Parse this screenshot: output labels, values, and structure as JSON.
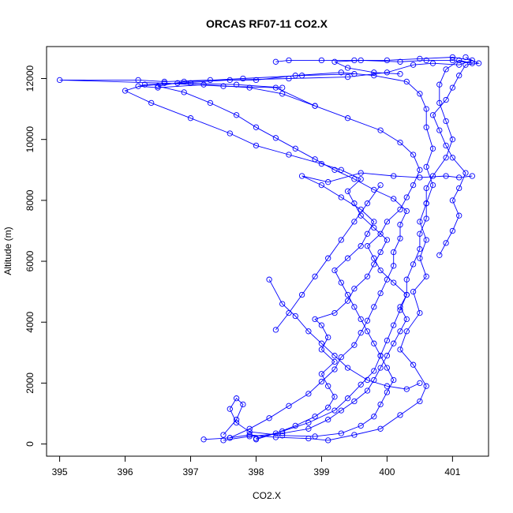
{
  "chart_data": {
    "type": "line",
    "title": "ORCAS RF07-11 CO2.X",
    "xlabel": "CO2.X",
    "ylabel": "Altitude (m)",
    "xlim": [
      394.8,
      401.55
    ],
    "ylim": [
      -400,
      13050
    ],
    "x_ticks": [
      395,
      396,
      397,
      398,
      399,
      400,
      401
    ],
    "y_ticks": [
      0,
      2000,
      4000,
      6000,
      8000,
      10000,
      12000
    ],
    "x_tick_labels": [
      "395",
      "396",
      "397",
      "398",
      "399",
      "400",
      "401"
    ],
    "y_tick_labels": [
      "0",
      "2000",
      "4000",
      "6000",
      "8000",
      "10000",
      "12000"
    ],
    "marker": "open-circle",
    "grid": false,
    "legend": "none",
    "colors": {
      "series": "#0000ff",
      "axis": "#000000"
    },
    "series": [
      {
        "values": [
          [
            397.2,
            150
          ],
          [
            397.6,
            200
          ],
          [
            397.9,
            300
          ],
          [
            398.3,
            220
          ],
          [
            398.8,
            180
          ],
          [
            399.1,
            120
          ],
          [
            399.5,
            300
          ],
          [
            399.9,
            500
          ],
          [
            400.2,
            950
          ],
          [
            400.5,
            1400
          ],
          [
            400.6,
            1900
          ],
          [
            400.4,
            2600
          ],
          [
            400.2,
            3100
          ],
          [
            400.3,
            3700
          ],
          [
            400.5,
            4300
          ],
          [
            400.4,
            5000
          ],
          [
            400.6,
            5500
          ],
          [
            400.5,
            6100
          ],
          [
            400.6,
            6700
          ],
          [
            400.5,
            7300
          ],
          [
            400.6,
            7900
          ],
          [
            400.7,
            8500
          ],
          [
            400.6,
            9100
          ],
          [
            400.7,
            9700
          ],
          [
            400.6,
            10400
          ],
          [
            400.6,
            11000
          ],
          [
            400.5,
            11500
          ],
          [
            400.3,
            11900
          ],
          [
            399.8,
            12100
          ],
          [
            399.3,
            12200
          ],
          [
            398.6,
            12100
          ],
          [
            398.0,
            11950
          ],
          [
            397.3,
            11950
          ],
          [
            396.6,
            11900
          ],
          [
            396.2,
            11950
          ],
          [
            395.0,
            11950
          ],
          [
            396.6,
            11850
          ],
          [
            397.5,
            11750
          ],
          [
            398.3,
            11700
          ],
          [
            398.9,
            11100
          ]
        ]
      },
      {
        "values": [
          [
            398.0,
            180
          ],
          [
            398.4,
            420
          ],
          [
            398.8,
            700
          ],
          [
            399.2,
            1100
          ],
          [
            399.4,
            1500
          ],
          [
            399.6,
            1950
          ],
          [
            399.8,
            2400
          ],
          [
            399.9,
            2900
          ],
          [
            400.0,
            3400
          ],
          [
            400.1,
            3900
          ],
          [
            400.2,
            4400
          ],
          [
            400.3,
            4900
          ],
          [
            400.3,
            5400
          ],
          [
            400.4,
            5900
          ],
          [
            400.5,
            6400
          ],
          [
            400.5,
            6900
          ],
          [
            400.6,
            7400
          ],
          [
            400.6,
            7900
          ],
          [
            400.6,
            8400
          ],
          [
            400.7,
            8800
          ],
          [
            400.9,
            9400
          ],
          [
            401.0,
            10000
          ],
          [
            400.9,
            10600
          ],
          [
            400.8,
            11200
          ],
          [
            400.8,
            11800
          ],
          [
            400.9,
            12300
          ],
          [
            401.1,
            12600
          ],
          [
            401.3,
            12500
          ],
          [
            401.0,
            12600
          ],
          [
            400.6,
            12600
          ],
          [
            400.2,
            12550
          ],
          [
            399.6,
            12600
          ],
          [
            399.2,
            12550
          ],
          [
            399.4,
            12350
          ],
          [
            399.8,
            12200
          ],
          [
            400.2,
            12150
          ]
        ]
      },
      {
        "values": [
          [
            397.6,
            200
          ],
          [
            397.9,
            500
          ],
          [
            398.2,
            850
          ],
          [
            398.5,
            1250
          ],
          [
            398.8,
            1650
          ],
          [
            399.0,
            2050
          ],
          [
            399.2,
            2450
          ],
          [
            399.3,
            2850
          ],
          [
            399.5,
            3250
          ],
          [
            399.6,
            3650
          ],
          [
            399.7,
            4050
          ],
          [
            399.8,
            4500
          ],
          [
            399.9,
            4950
          ],
          [
            400.0,
            5400
          ],
          [
            400.1,
            5850
          ],
          [
            400.1,
            6300
          ],
          [
            400.2,
            6750
          ],
          [
            400.2,
            7200
          ],
          [
            400.3,
            7650
          ],
          [
            400.1,
            8050
          ],
          [
            399.8,
            8350
          ],
          [
            399.5,
            8700
          ],
          [
            399.2,
            9000
          ],
          [
            398.9,
            9350
          ],
          [
            398.6,
            9700
          ],
          [
            398.3,
            10050
          ],
          [
            398.0,
            10400
          ],
          [
            397.7,
            10800
          ],
          [
            397.3,
            11200
          ],
          [
            396.9,
            11550
          ],
          [
            396.5,
            11750
          ],
          [
            396.9,
            11900
          ],
          [
            397.8,
            12000
          ],
          [
            398.7,
            12100
          ],
          [
            399.5,
            12150
          ]
        ]
      },
      {
        "values": [
          [
            398.0,
            150
          ],
          [
            398.3,
            350
          ],
          [
            398.6,
            600
          ],
          [
            398.9,
            900
          ],
          [
            399.1,
            1200
          ],
          [
            399.2,
            1550
          ],
          [
            399.1,
            1900
          ],
          [
            399.0,
            2300
          ],
          [
            399.2,
            2700
          ],
          [
            399.0,
            3100
          ],
          [
            399.1,
            3500
          ],
          [
            399.0,
            3900
          ],
          [
            398.9,
            4100
          ],
          [
            399.2,
            4300
          ],
          [
            399.4,
            4700
          ],
          [
            399.5,
            5100
          ],
          [
            399.7,
            5500
          ],
          [
            399.8,
            5900
          ],
          [
            399.9,
            6300
          ],
          [
            400.0,
            6700
          ],
          [
            399.8,
            7100
          ],
          [
            399.6,
            7500
          ],
          [
            399.5,
            7900
          ],
          [
            399.4,
            8300
          ],
          [
            399.6,
            8700
          ],
          [
            399.3,
            9000
          ],
          [
            399.0,
            9200
          ],
          [
            398.5,
            9500
          ],
          [
            398.0,
            9800
          ],
          [
            397.6,
            10200
          ],
          [
            397.0,
            10700
          ],
          [
            396.4,
            11200
          ],
          [
            396.0,
            11600
          ],
          [
            396.3,
            11800
          ],
          [
            397.0,
            11850
          ],
          [
            397.7,
            11800
          ],
          [
            398.4,
            11700
          ]
        ]
      },
      {
        "values": [
          [
            397.5,
            300
          ],
          [
            397.7,
            800
          ],
          [
            397.8,
            1300
          ],
          [
            397.7,
            1500
          ],
          [
            397.6,
            1150
          ],
          [
            397.7,
            700
          ],
          [
            397.9,
            400
          ],
          [
            398.4,
            280
          ],
          [
            398.9,
            250
          ],
          [
            399.3,
            350
          ],
          [
            399.6,
            600
          ],
          [
            399.8,
            900
          ],
          [
            399.9,
            1300
          ],
          [
            400.0,
            1700
          ],
          [
            400.1,
            2100
          ],
          [
            400.0,
            2500
          ],
          [
            399.9,
            2900
          ],
          [
            399.8,
            3300
          ],
          [
            399.7,
            3700
          ],
          [
            399.6,
            4100
          ],
          [
            399.5,
            4500
          ],
          [
            399.4,
            4900
          ],
          [
            399.3,
            5300
          ],
          [
            399.2,
            5700
          ],
          [
            399.4,
            6100
          ],
          [
            399.6,
            6500
          ],
          [
            399.7,
            6900
          ],
          [
            399.8,
            7300
          ],
          [
            399.6,
            7700
          ],
          [
            399.3,
            8100
          ],
          [
            399.0,
            8500
          ],
          [
            398.7,
            8800
          ],
          [
            399.1,
            8600
          ],
          [
            399.6,
            8900
          ],
          [
            400.1,
            8800
          ],
          [
            400.5,
            8750
          ],
          [
            400.9,
            8800
          ],
          [
            401.1,
            8750
          ],
          [
            401.3,
            8800
          ]
        ]
      },
      {
        "values": [
          [
            397.5,
            120
          ],
          [
            397.9,
            250
          ],
          [
            398.4,
            350
          ],
          [
            398.8,
            500
          ],
          [
            399.1,
            800
          ],
          [
            399.3,
            1100
          ],
          [
            399.5,
            1400
          ],
          [
            399.7,
            1750
          ],
          [
            399.8,
            2100
          ],
          [
            399.9,
            2500
          ],
          [
            400.0,
            2900
          ],
          [
            400.1,
            3300
          ],
          [
            400.2,
            3700
          ],
          [
            400.3,
            4100
          ],
          [
            400.2,
            4500
          ],
          [
            400.3,
            4900
          ],
          [
            400.1,
            5300
          ],
          [
            399.9,
            5700
          ],
          [
            399.8,
            6100
          ],
          [
            399.7,
            6500
          ],
          [
            399.9,
            6900
          ],
          [
            400.0,
            7300
          ],
          [
            400.2,
            7700
          ],
          [
            400.3,
            8100
          ],
          [
            400.4,
            8500
          ],
          [
            400.5,
            9000
          ],
          [
            400.4,
            9500
          ],
          [
            400.2,
            9900
          ],
          [
            399.9,
            10300
          ],
          [
            399.4,
            10700
          ],
          [
            398.9,
            11100
          ],
          [
            398.4,
            11500
          ],
          [
            397.9,
            11700
          ],
          [
            397.2,
            11800
          ],
          [
            396.5,
            11700
          ],
          [
            396.2,
            11750
          ],
          [
            396.8,
            11850
          ],
          [
            397.6,
            11950
          ],
          [
            398.5,
            12000
          ],
          [
            399.4,
            12050
          ],
          [
            400.0,
            12200
          ],
          [
            400.4,
            12450
          ],
          [
            400.7,
            12500
          ],
          [
            401.1,
            12450
          ],
          [
            401.3,
            12600
          ],
          [
            401.0,
            12700
          ],
          [
            400.5,
            12650
          ],
          [
            400.0,
            12600
          ],
          [
            399.5,
            12600
          ],
          [
            399.0,
            12600
          ],
          [
            398.5,
            12600
          ],
          [
            398.3,
            12550
          ]
        ]
      },
      {
        "values": [
          [
            398.3,
            3750
          ],
          [
            398.5,
            4300
          ],
          [
            398.7,
            4900
          ],
          [
            398.9,
            5500
          ],
          [
            399.1,
            6100
          ],
          [
            399.3,
            6700
          ],
          [
            399.5,
            7300
          ],
          [
            399.7,
            7900
          ],
          [
            399.9,
            8500
          ]
        ]
      },
      {
        "values": [
          [
            398.2,
            5400
          ],
          [
            398.4,
            4600
          ],
          [
            398.6,
            4200
          ],
          [
            398.8,
            3700
          ],
          [
            399.0,
            3300
          ],
          [
            399.2,
            2900
          ],
          [
            399.4,
            2500
          ],
          [
            399.7,
            2100
          ],
          [
            400.0,
            1900
          ],
          [
            400.3,
            1800
          ],
          [
            400.5,
            2000
          ]
        ]
      },
      {
        "values": [
          [
            400.8,
            6200
          ],
          [
            400.9,
            6600
          ],
          [
            401.0,
            7000
          ],
          [
            401.1,
            7500
          ],
          [
            401.0,
            8000
          ],
          [
            401.1,
            8400
          ],
          [
            401.2,
            8900
          ],
          [
            401.0,
            9400
          ],
          [
            400.9,
            9800
          ],
          [
            400.8,
            10300
          ],
          [
            400.7,
            10800
          ],
          [
            400.9,
            11300
          ],
          [
            401.0,
            11700
          ],
          [
            401.1,
            12100
          ],
          [
            401.2,
            12450
          ],
          [
            401.4,
            12500
          ],
          [
            401.2,
            12700
          ]
        ]
      }
    ]
  }
}
